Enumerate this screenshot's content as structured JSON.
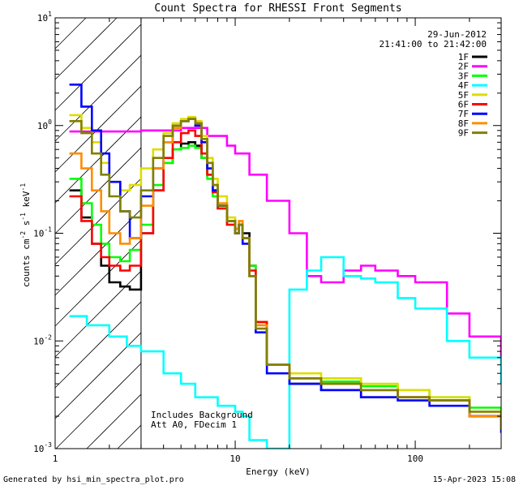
{
  "chart_data": {
    "type": "line",
    "title": "Count Spectra for RHESSI Front Segments",
    "xlabel": "Energy (keV)",
    "ylabel_base": "counts cm",
    "ylabel_sup1": "-2",
    "ylabel_mid": " s",
    "ylabel_sup2": "-1",
    "ylabel_unit": " keV",
    "ylabel_sup3": "-1",
    "xscale": "log",
    "yscale": "log",
    "xlim": [
      1,
      300
    ],
    "ylim": [
      0.001,
      10
    ],
    "x_ticks": [
      {
        "v": 1,
        "label": "1"
      },
      {
        "v": 10,
        "label": "10"
      },
      {
        "v": 100,
        "label": "100"
      }
    ],
    "y_ticks": [
      {
        "v": 0.001,
        "base": "10",
        "exp": "-3"
      },
      {
        "v": 0.01,
        "base": "10",
        "exp": "-2"
      },
      {
        "v": 0.1,
        "base": "10",
        "exp": "-1"
      },
      {
        "v": 1,
        "base": "10",
        "exp": "0"
      },
      {
        "v": 10,
        "base": "10",
        "exp": "1"
      }
    ],
    "hatched_region_keV": [
      1,
      3
    ],
    "date": "29-Jun-2012",
    "time_range": "21:41:00 to 21:42:00",
    "annotation_1": "Includes Background",
    "annotation_2": "Att A0, FDecim 1",
    "series": [
      {
        "name": "1F",
        "color": "#000000",
        "x": [
          1.2,
          1.4,
          1.6,
          1.8,
          2.0,
          2.3,
          2.6,
          3.0,
          3.5,
          4.0,
          4.5,
          5.0,
          5.5,
          6.0,
          6.5,
          7.0,
          7.5,
          8.0,
          9.0,
          10.0,
          10.5,
          11.0,
          12.0,
          13.0,
          15.0,
          20.0,
          30.0,
          50.0,
          80.0,
          120.0,
          200.0,
          300.0
        ],
        "y": [
          0.25,
          0.14,
          0.08,
          0.05,
          0.035,
          0.032,
          0.03,
          0.1,
          0.25,
          0.45,
          0.6,
          0.68,
          0.7,
          0.65,
          0.5,
          0.35,
          0.25,
          0.18,
          0.13,
          0.11,
          0.12,
          0.1,
          0.05,
          0.015,
          0.006,
          0.004,
          0.0035,
          0.003,
          0.003,
          0.0028,
          0.002,
          0.0015
        ]
      },
      {
        "name": "2F",
        "color": "#ff00ff",
        "x": [
          1.2,
          2.0,
          3.0,
          5.0,
          7.0,
          9.0,
          10.0,
          12.0,
          15.0,
          20.0,
          25.0,
          30.0,
          40.0,
          50.0,
          60.0,
          80.0,
          100.0,
          150.0,
          200.0,
          300.0
        ],
        "y": [
          0.88,
          0.88,
          0.9,
          0.95,
          0.8,
          0.65,
          0.55,
          0.35,
          0.2,
          0.1,
          0.04,
          0.035,
          0.045,
          0.05,
          0.045,
          0.04,
          0.035,
          0.018,
          0.011,
          0.0065
        ]
      },
      {
        "name": "3F",
        "color": "#00ff00",
        "x": [
          1.2,
          1.4,
          1.6,
          1.8,
          2.0,
          2.3,
          2.6,
          3.0,
          3.5,
          4.0,
          4.5,
          5.0,
          5.5,
          6.0,
          6.5,
          7.0,
          7.5,
          8.0,
          9.0,
          10.0,
          10.5,
          11.0,
          12.0,
          13.0,
          15.0,
          20.0,
          30.0,
          50.0,
          80.0,
          120.0,
          200.0,
          300.0
        ],
        "y": [
          0.32,
          0.19,
          0.12,
          0.08,
          0.06,
          0.055,
          0.07,
          0.12,
          0.28,
          0.45,
          0.6,
          0.62,
          0.65,
          0.62,
          0.5,
          0.32,
          0.22,
          0.17,
          0.12,
          0.1,
          0.12,
          0.09,
          0.05,
          0.015,
          0.006,
          0.0045,
          0.0042,
          0.0038,
          0.0035,
          0.003,
          0.0024,
          0.0015
        ]
      },
      {
        "name": "4F",
        "color": "#00ffff",
        "x": [
          1.2,
          1.5,
          2.0,
          2.5,
          3.0,
          4.0,
          5.0,
          6.0,
          8.0,
          10.0,
          11.0,
          12.0,
          15.0,
          20.0,
          25.0,
          30.0,
          40.0,
          50.0,
          60.0,
          80.0,
          100.0,
          150.0,
          200.0,
          300.0
        ],
        "y": [
          0.017,
          0.014,
          0.011,
          0.009,
          0.008,
          0.005,
          0.004,
          0.003,
          0.0025,
          0.0022,
          0.002,
          0.0012,
          0.001,
          0.03,
          0.045,
          0.06,
          0.04,
          0.038,
          0.035,
          0.025,
          0.02,
          0.01,
          0.007,
          0.004
        ]
      },
      {
        "name": "5F",
        "color": "#dddd00",
        "x": [
          1.2,
          1.4,
          1.6,
          1.8,
          2.0,
          2.3,
          2.6,
          3.0,
          3.5,
          4.0,
          4.5,
          5.0,
          5.5,
          6.0,
          6.5,
          7.0,
          7.5,
          8.0,
          9.0,
          10.0,
          10.5,
          11.0,
          12.0,
          13.0,
          15.0,
          20.0,
          30.0,
          50.0,
          80.0,
          120.0,
          200.0,
          300.0
        ],
        "y": [
          1.25,
          0.95,
          0.7,
          0.45,
          0.3,
          0.25,
          0.28,
          0.4,
          0.6,
          0.85,
          1.05,
          1.15,
          1.2,
          1.1,
          0.8,
          0.5,
          0.32,
          0.22,
          0.14,
          0.11,
          0.13,
          0.09,
          0.04,
          0.015,
          0.006,
          0.005,
          0.0045,
          0.004,
          0.0035,
          0.003,
          0.0022,
          0.0015
        ]
      },
      {
        "name": "6F",
        "color": "#ff0000",
        "x": [
          1.2,
          1.4,
          1.6,
          1.8,
          2.0,
          2.3,
          2.6,
          3.0,
          3.5,
          4.0,
          4.5,
          5.0,
          5.5,
          6.0,
          6.5,
          7.0,
          7.5,
          8.0,
          9.0,
          10.0,
          10.5,
          11.0,
          12.0,
          13.0,
          15.0,
          20.0,
          30.0,
          50.0,
          80.0,
          120.0,
          200.0,
          300.0
        ],
        "y": [
          0.22,
          0.13,
          0.08,
          0.06,
          0.05,
          0.045,
          0.05,
          0.1,
          0.25,
          0.5,
          0.7,
          0.85,
          0.9,
          0.8,
          0.55,
          0.35,
          0.24,
          0.17,
          0.12,
          0.1,
          0.12,
          0.09,
          0.045,
          0.015,
          0.006,
          0.0045,
          0.004,
          0.0035,
          0.003,
          0.0028,
          0.002,
          0.0015
        ]
      },
      {
        "name": "7F",
        "color": "#0000ff",
        "x": [
          1.2,
          1.4,
          1.6,
          1.8,
          2.0,
          2.3,
          2.6,
          3.0,
          3.5,
          4.0,
          4.5,
          5.0,
          5.5,
          6.0,
          6.5,
          7.0,
          7.5,
          8.0,
          9.0,
          10.0,
          10.5,
          11.0,
          12.0,
          13.0,
          15.0,
          20.0,
          30.0,
          50.0,
          80.0,
          120.0,
          200.0,
          300.0
        ],
        "y": [
          2.4,
          1.5,
          0.9,
          0.55,
          0.3,
          0.16,
          0.09,
          0.22,
          0.4,
          0.7,
          0.95,
          1.1,
          1.15,
          1.0,
          0.7,
          0.4,
          0.25,
          0.18,
          0.13,
          0.1,
          0.12,
          0.08,
          0.04,
          0.012,
          0.005,
          0.004,
          0.0035,
          0.003,
          0.0028,
          0.0025,
          0.002,
          0.0014
        ]
      },
      {
        "name": "8F",
        "color": "#ff8c00",
        "x": [
          1.2,
          1.4,
          1.6,
          1.8,
          2.0,
          2.3,
          2.6,
          3.0,
          3.5,
          4.0,
          4.5,
          5.0,
          5.5,
          6.0,
          6.5,
          7.0,
          7.5,
          8.0,
          9.0,
          10.0,
          10.5,
          11.0,
          12.0,
          13.0,
          15.0,
          20.0,
          30.0,
          50.0,
          80.0,
          120.0,
          200.0,
          300.0
        ],
        "y": [
          0.55,
          0.4,
          0.25,
          0.16,
          0.1,
          0.08,
          0.09,
          0.18,
          0.4,
          0.7,
          0.95,
          1.1,
          1.15,
          1.05,
          0.75,
          0.45,
          0.28,
          0.19,
          0.13,
          0.11,
          0.13,
          0.09,
          0.04,
          0.014,
          0.006,
          0.0045,
          0.004,
          0.0035,
          0.003,
          0.0028,
          0.002,
          0.0015
        ]
      },
      {
        "name": "9F",
        "color": "#808000",
        "x": [
          1.2,
          1.4,
          1.6,
          1.8,
          2.0,
          2.3,
          2.6,
          3.0,
          3.5,
          4.0,
          4.5,
          5.0,
          5.5,
          6.0,
          6.5,
          7.0,
          7.5,
          8.0,
          9.0,
          10.0,
          10.5,
          11.0,
          12.0,
          13.0,
          15.0,
          20.0,
          30.0,
          50.0,
          80.0,
          120.0,
          200.0,
          300.0
        ],
        "y": [
          1.1,
          0.85,
          0.55,
          0.35,
          0.22,
          0.16,
          0.14,
          0.25,
          0.5,
          0.8,
          1.0,
          1.1,
          1.15,
          1.05,
          0.75,
          0.45,
          0.28,
          0.18,
          0.13,
          0.1,
          0.12,
          0.09,
          0.04,
          0.013,
          0.006,
          0.0045,
          0.004,
          0.0035,
          0.003,
          0.0028,
          0.0022,
          0.0015
        ]
      }
    ]
  },
  "footer": {
    "generated_by": "Generated by hsi_min_spectra_plot.pro",
    "timestamp": "15-Apr-2023 15:08"
  }
}
